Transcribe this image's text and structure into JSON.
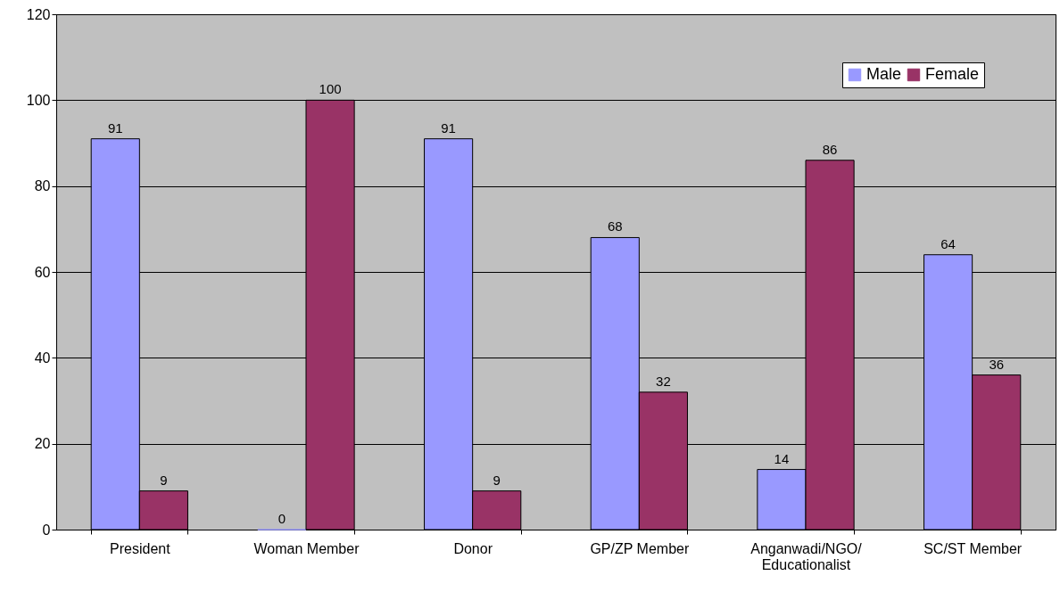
{
  "chart_data": {
    "type": "bar",
    "categories": [
      "President",
      "Woman Member",
      "Donor",
      "GP/ZP Member",
      "Anganwadi/NGO/ Educationalist",
      "SC/ST Member"
    ],
    "series": [
      {
        "name": "Male",
        "color": "#9999ff",
        "values": [
          91,
          0,
          91,
          68,
          14,
          64
        ]
      },
      {
        "name": "Female",
        "color": "#993366",
        "values": [
          9,
          100,
          9,
          32,
          86,
          36
        ]
      }
    ],
    "ylim": [
      0,
      120
    ],
    "yticks": [
      0,
      20,
      40,
      60,
      80,
      100,
      120
    ],
    "grid": "y",
    "legend": "top right",
    "data_labels": true
  }
}
